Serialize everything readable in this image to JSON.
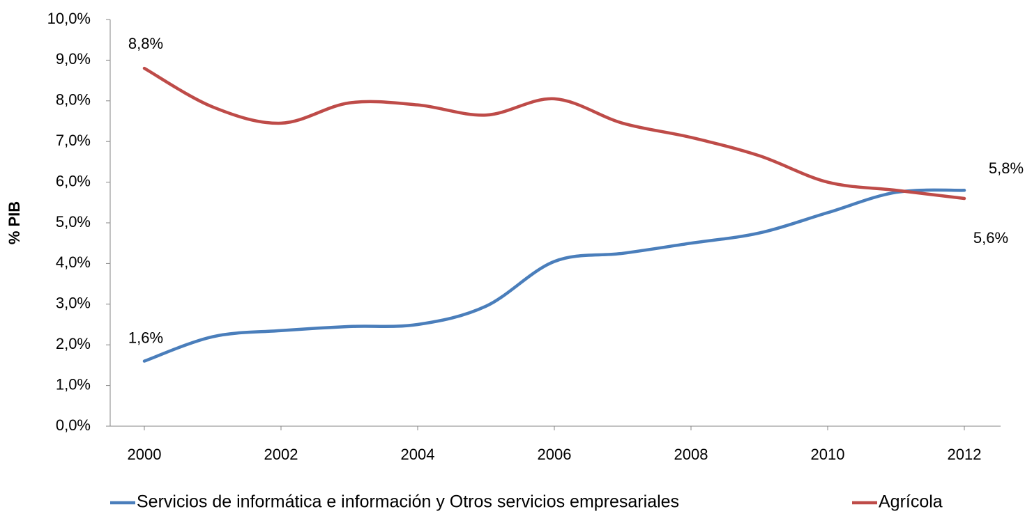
{
  "chart_data": {
    "type": "line",
    "ylabel": "% PIB",
    "x": [
      2000,
      2001,
      2002,
      2003,
      2004,
      2005,
      2006,
      2007,
      2008,
      2009,
      2010,
      2011,
      2012
    ],
    "xlim": [
      1999.5,
      2012.5
    ],
    "xticks": [
      2000,
      2002,
      2004,
      2006,
      2008,
      2010,
      2012
    ],
    "ylim": [
      0,
      10
    ],
    "yticks": [
      {
        "value": 0,
        "label": "0,0%"
      },
      {
        "value": 1,
        "label": "1,0%"
      },
      {
        "value": 2,
        "label": "2,0%"
      },
      {
        "value": 3,
        "label": "3,0%"
      },
      {
        "value": 4,
        "label": "4,0%"
      },
      {
        "value": 5,
        "label": "5,0%"
      },
      {
        "value": 6,
        "label": "6,0%"
      },
      {
        "value": 7,
        "label": "7,0%"
      },
      {
        "value": 8,
        "label": "8,0%"
      },
      {
        "value": 9,
        "label": "9,0%"
      },
      {
        "value": 10,
        "label": "10,0%"
      }
    ],
    "grid": false,
    "legend": "bottom",
    "series": [
      {
        "name": "Servicios de informática e información y Otros servicios empresariales",
        "color": "#4a7ebb",
        "values": [
          1.6,
          2.2,
          2.35,
          2.45,
          2.5,
          2.95,
          4.05,
          4.25,
          4.5,
          4.75,
          5.25,
          5.75,
          5.8
        ],
        "value_labels": [
          "1,6%",
          null,
          null,
          null,
          null,
          null,
          null,
          null,
          null,
          null,
          null,
          null,
          "5,8%"
        ]
      },
      {
        "name": "Agrícola",
        "color": "#be4b48",
        "values": [
          8.8,
          7.85,
          7.45,
          7.95,
          7.9,
          7.65,
          8.05,
          7.45,
          7.1,
          6.65,
          6.0,
          5.8,
          5.6
        ],
        "value_labels": [
          "8,8%",
          null,
          null,
          null,
          null,
          null,
          null,
          null,
          null,
          null,
          null,
          null,
          "5,6%"
        ]
      }
    ]
  }
}
